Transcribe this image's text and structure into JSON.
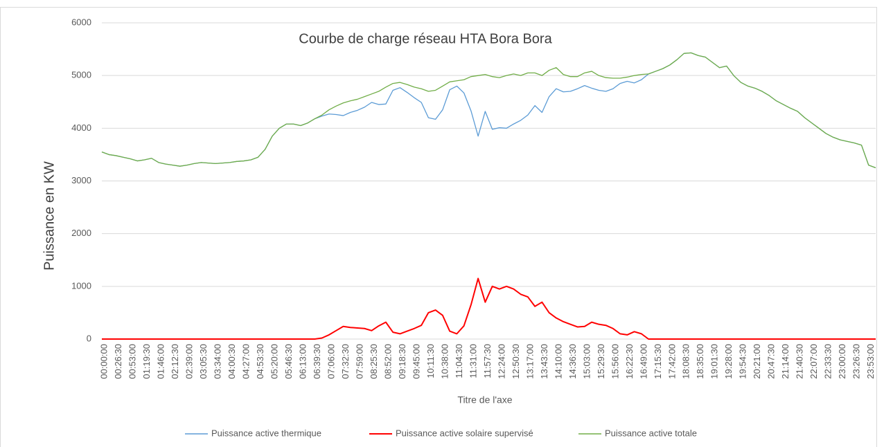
{
  "chart_data": {
    "type": "line",
    "title": "Courbe de charge réseau HTA Bora Bora",
    "y_label": "Puissance en KW",
    "x_label": "Titre de l'axe",
    "legend": "bottom",
    "grid": true,
    "ylim": [
      0,
      6000
    ],
    "yticks": [
      0,
      1000,
      2000,
      3000,
      4000,
      5000,
      6000
    ],
    "categories": [
      "00:00:00",
      null,
      "00:26:30",
      null,
      "00:53:00",
      null,
      "01:19:30",
      null,
      "01:46:00",
      null,
      "02:12:30",
      null,
      "02:39:00",
      null,
      "03:05:30",
      null,
      "03:34:00",
      null,
      "04:00:30",
      null,
      "04:27:00",
      null,
      "04:53:30",
      null,
      "05:20:00",
      null,
      "05:46:30",
      null,
      "06:13:00",
      null,
      "06:39:30",
      null,
      "07:06:00",
      null,
      "07:32:30",
      null,
      "07:59:00",
      null,
      "08:25:30",
      null,
      "08:52:00",
      null,
      "09:18:30",
      null,
      "09:45:00",
      null,
      "10:11:30",
      null,
      "10:38:00",
      null,
      "11:04:30",
      null,
      "11:31:00",
      null,
      "11:57:30",
      null,
      "12:24:00",
      null,
      "12:50:30",
      null,
      "13:17:00",
      null,
      "13:43:30",
      null,
      "14:10:00",
      null,
      "14:36:30",
      null,
      "15:03:00",
      null,
      "15:29:30",
      null,
      "15:56:00",
      null,
      "16:22:30",
      null,
      "16:49:00",
      null,
      "17:15:30",
      null,
      "17:42:00",
      null,
      "18:08:30",
      null,
      "18:35:00",
      null,
      "19:01:30",
      null,
      "19:28:00",
      null,
      "19:54:30",
      null,
      "20:21:00",
      null,
      "20:47:30",
      null,
      "21:14:00",
      null,
      "21:40:30",
      null,
      "22:07:00",
      null,
      "22:33:30",
      null,
      "23:00:00",
      null,
      "23:26:30",
      null,
      "23:53:00",
      null
    ],
    "series": [
      {
        "name": "Puissance active thermique",
        "color": "#5b9bd5",
        "values": [
          3550,
          3500,
          3480,
          3450,
          3420,
          3380,
          3400,
          3430,
          3350,
          3320,
          3300,
          3280,
          3300,
          3330,
          3350,
          3340,
          3330,
          3340,
          3350,
          3370,
          3380,
          3400,
          3450,
          3600,
          3850,
          4000,
          4080,
          4080,
          4050,
          4100,
          4180,
          4230,
          4270,
          4260,
          4240,
          4300,
          4340,
          4400,
          4490,
          4450,
          4460,
          4720,
          4770,
          4680,
          4580,
          4490,
          4200,
          4170,
          4350,
          4730,
          4800,
          4670,
          4330,
          3850,
          4320,
          3980,
          4010,
          4000,
          4080,
          4150,
          4250,
          4430,
          4300,
          4600,
          4750,
          4690,
          4700,
          4750,
          4810,
          4760,
          4720,
          4700,
          4750,
          4850,
          4890,
          4860,
          4920,
          5030,
          5080,
          5130,
          5200,
          5300,
          5420,
          5430,
          5380,
          5350,
          5250,
          5150,
          5180,
          5000,
          4870,
          4800,
          4760,
          4700,
          4620,
          4520,
          4450,
          4380,
          4320,
          4200,
          4100,
          4000,
          3900,
          3830,
          3780,
          3750,
          3720,
          3680,
          3300,
          3250
        ]
      },
      {
        "name": "Puissance active solaire supervisé",
        "color": "#ff0000",
        "values": [
          0,
          0,
          0,
          0,
          0,
          0,
          0,
          0,
          0,
          0,
          0,
          0,
          0,
          0,
          0,
          0,
          0,
          0,
          0,
          0,
          0,
          0,
          0,
          0,
          0,
          0,
          0,
          0,
          0,
          0,
          0,
          20,
          80,
          160,
          240,
          220,
          210,
          200,
          160,
          250,
          320,
          130,
          100,
          150,
          200,
          260,
          500,
          550,
          450,
          150,
          100,
          250,
          650,
          1150,
          700,
          1000,
          950,
          1000,
          950,
          850,
          800,
          620,
          700,
          500,
          400,
          330,
          280,
          230,
          240,
          320,
          280,
          260,
          200,
          100,
          80,
          140,
          100,
          0,
          0,
          0,
          0,
          0,
          0,
          0,
          0,
          0,
          0,
          0,
          0,
          0,
          0,
          0,
          0,
          0,
          0,
          0,
          0,
          0,
          0,
          0,
          0,
          0,
          0,
          0,
          0,
          0,
          0,
          0,
          0,
          0
        ]
      },
      {
        "name": "Puissance active totale",
        "color": "#70ad47",
        "values": [
          3550,
          3500,
          3480,
          3450,
          3420,
          3380,
          3400,
          3430,
          3350,
          3320,
          3300,
          3280,
          3300,
          3330,
          3350,
          3340,
          3330,
          3340,
          3350,
          3370,
          3380,
          3400,
          3450,
          3600,
          3850,
          4000,
          4080,
          4080,
          4050,
          4100,
          4180,
          4250,
          4350,
          4420,
          4480,
          4520,
          4550,
          4600,
          4650,
          4700,
          4780,
          4850,
          4870,
          4830,
          4780,
          4750,
          4700,
          4720,
          4800,
          4880,
          4900,
          4920,
          4980,
          5000,
          5020,
          4980,
          4960,
          5000,
          5030,
          5000,
          5050,
          5050,
          5000,
          5100,
          5150,
          5020,
          4980,
          4980,
          5050,
          5080,
          5000,
          4960,
          4950,
          4950,
          4970,
          5000,
          5020,
          5030,
          5080,
          5130,
          5200,
          5300,
          5420,
          5430,
          5380,
          5350,
          5250,
          5150,
          5180,
          5000,
          4870,
          4800,
          4760,
          4700,
          4620,
          4520,
          4450,
          4380,
          4320,
          4200,
          4100,
          4000,
          3900,
          3830,
          3780,
          3750,
          3720,
          3680,
          3300,
          3250
        ]
      }
    ]
  }
}
